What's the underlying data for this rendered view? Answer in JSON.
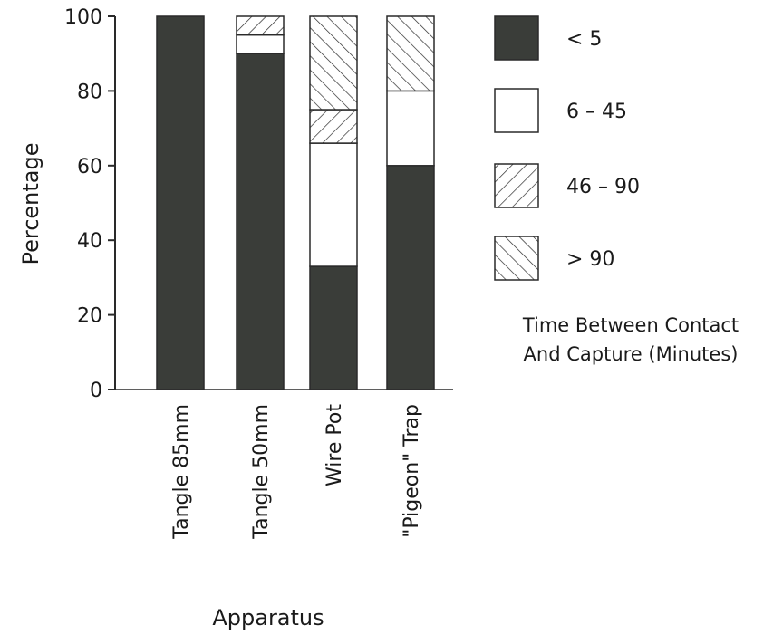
{
  "chart_data": {
    "type": "bar",
    "stacked": true,
    "title": "",
    "xlabel": "Apparatus",
    "ylabel": "Percentage",
    "ylim": [
      0,
      100
    ],
    "yticks": [
      "0",
      "20",
      "40",
      "60",
      "80",
      "100"
    ],
    "categories": [
      "Tangle 85mm",
      "Tangle 50mm",
      "Wire Pot",
      "\"Pigeon\" Trap"
    ],
    "series": [
      {
        "name": "< 5",
        "pattern": "solid",
        "values": [
          100,
          90,
          33,
          60
        ]
      },
      {
        "name": "6 – 45",
        "pattern": "white",
        "values": [
          0,
          5,
          33,
          20
        ]
      },
      {
        "name": "46 – 90",
        "pattern": "hatch-forward",
        "values": [
          0,
          5,
          9,
          0
        ]
      },
      {
        "name": "> 90",
        "pattern": "hatch-back",
        "values": [
          0,
          0,
          25,
          20
        ]
      }
    ],
    "legend_title": [
      "Time Between Contact",
      "And Capture (Minutes)"
    ],
    "legend_position": "right",
    "grid": false,
    "colors": {
      "dark": "#3a3d39",
      "stroke": "#2a2a2a",
      "background": "#ffffff"
    }
  }
}
